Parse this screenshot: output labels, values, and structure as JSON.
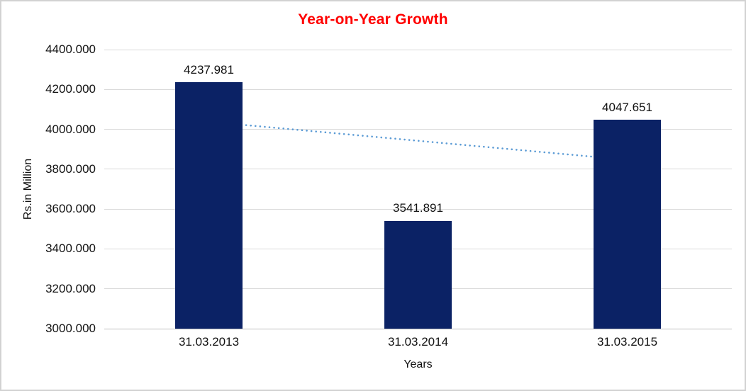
{
  "chart_data": {
    "type": "bar",
    "title": "Year-on-Year Growth",
    "xlabel": "Years",
    "ylabel": "Rs.in Million",
    "categories": [
      "31.03.2013",
      "31.03.2014",
      "31.03.2015"
    ],
    "values": [
      4237.981,
      3541.891,
      4047.651
    ],
    "data_labels": [
      "4237.981",
      "3541.891",
      "4047.651"
    ],
    "ylim": [
      3000,
      4400
    ],
    "ytick_step": 200,
    "ytick_labels": [
      "3000.000",
      "3200.000",
      "3400.000",
      "3600.000",
      "3800.000",
      "4000.000",
      "4200.000",
      "4400.000"
    ],
    "grid": true,
    "legend": "none",
    "trendline": {
      "style": "dotted",
      "color": "#5b9bd5",
      "start_value": 4038,
      "end_value": 3847
    },
    "colors": {
      "bar": "#0b2265",
      "title": "#ff0000",
      "gridline": "#d9d9d9",
      "axis_line": "#bfbfbf"
    }
  }
}
